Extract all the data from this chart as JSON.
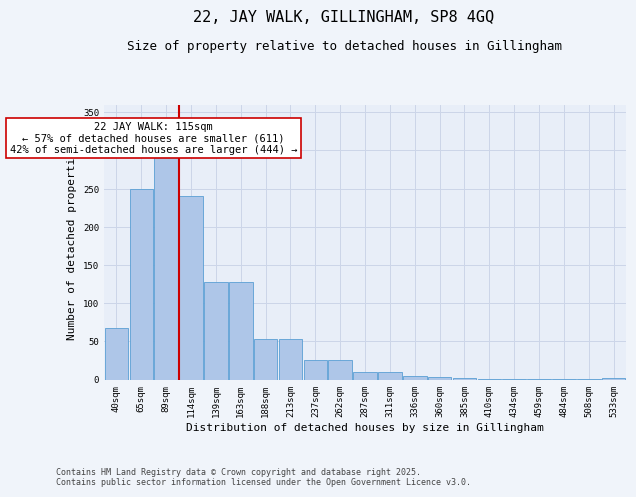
{
  "title": "22, JAY WALK, GILLINGHAM, SP8 4GQ",
  "subtitle": "Size of property relative to detached houses in Gillingham",
  "xlabel": "Distribution of detached houses by size in Gillingham",
  "ylabel": "Number of detached properties",
  "categories": [
    "40sqm",
    "65sqm",
    "89sqm",
    "114sqm",
    "139sqm",
    "163sqm",
    "188sqm",
    "213sqm",
    "237sqm",
    "262sqm",
    "287sqm",
    "311sqm",
    "336sqm",
    "360sqm",
    "385sqm",
    "410sqm",
    "434sqm",
    "459sqm",
    "484sqm",
    "508sqm",
    "533sqm"
  ],
  "values": [
    68,
    250,
    295,
    240,
    127,
    127,
    53,
    53,
    25,
    25,
    10,
    10,
    5,
    3,
    2,
    1,
    1,
    1,
    1,
    1,
    2
  ],
  "bar_color": "#aec6e8",
  "bar_edge_color": "#5a9fd4",
  "vline_x_index": 3,
  "vline_color": "#cc0000",
  "annotation_line1": "22 JAY WALK: 115sqm",
  "annotation_line2": "← 57% of detached houses are smaller (611)",
  "annotation_line3": "42% of semi-detached houses are larger (444) →",
  "annotation_box_color": "#ffffff",
  "annotation_box_edge": "#cc0000",
  "ylim": [
    0,
    360
  ],
  "yticks": [
    0,
    50,
    100,
    150,
    200,
    250,
    300,
    350
  ],
  "grid_color": "#ccd5e8",
  "bg_color": "#e8eef8",
  "fig_bg_color": "#f0f4fa",
  "footnote": "Contains HM Land Registry data © Crown copyright and database right 2025.\nContains public sector information licensed under the Open Government Licence v3.0.",
  "title_fontsize": 11,
  "subtitle_fontsize": 9,
  "xlabel_fontsize": 8,
  "ylabel_fontsize": 8,
  "tick_fontsize": 6.5,
  "annotation_fontsize": 7.5,
  "footnote_fontsize": 6
}
